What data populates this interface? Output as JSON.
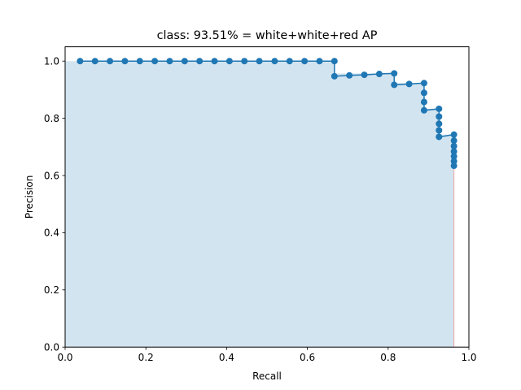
{
  "chart_data": {
    "type": "line",
    "title": "class: 93.51% = white+white+red AP",
    "xlabel": "Recall",
    "ylabel": "Precision",
    "xlim": [
      0.0,
      1.0
    ],
    "ylim": [
      0.0,
      1.05
    ],
    "xticks": [
      "0.0",
      "0.2",
      "0.4",
      "0.6",
      "0.8",
      "1.0"
    ],
    "yticks": [
      "0.0",
      "0.2",
      "0.4",
      "0.6",
      "0.8",
      "1.0"
    ],
    "grid": false,
    "series": [
      {
        "color": "#1f77b4",
        "fill_color": "#1f77b4",
        "x": [
          0.037,
          0.074,
          0.111,
          0.148,
          0.185,
          0.222,
          0.259,
          0.296,
          0.333,
          0.37,
          0.407,
          0.444,
          0.481,
          0.519,
          0.556,
          0.593,
          0.63,
          0.667,
          0.667,
          0.704,
          0.741,
          0.778,
          0.815,
          0.815,
          0.852,
          0.889,
          0.889,
          0.889,
          0.889,
          0.926,
          0.926,
          0.926,
          0.926,
          0.926,
          0.963,
          0.963,
          0.963,
          0.963,
          0.963,
          0.963,
          0.963
        ],
        "y": [
          1.0,
          1.0,
          1.0,
          1.0,
          1.0,
          1.0,
          1.0,
          1.0,
          1.0,
          1.0,
          1.0,
          1.0,
          1.0,
          1.0,
          1.0,
          1.0,
          1.0,
          1.0,
          0.947,
          0.95,
          0.952,
          0.955,
          0.957,
          0.917,
          0.92,
          0.923,
          0.889,
          0.857,
          0.828,
          0.833,
          0.806,
          0.781,
          0.758,
          0.735,
          0.743,
          0.722,
          0.703,
          0.684,
          0.667,
          0.65,
          0.634
        ]
      }
    ]
  }
}
